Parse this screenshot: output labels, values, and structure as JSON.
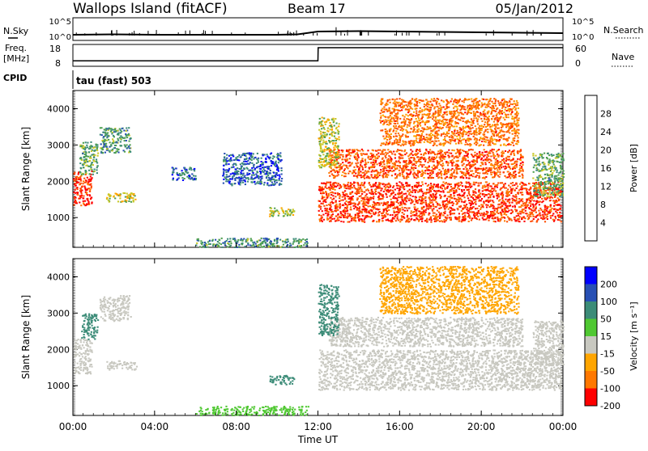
{
  "header": {
    "station": "Wallops Island (fitACF)",
    "beam": "Beam 17",
    "date": "05/Jan/2012"
  },
  "param_rows": {
    "nsky_label": "N.Sky",
    "nsky_tick_top": "10^5",
    "nsky_tick_bottom": "10^0",
    "nsearch_label": "N.Search",
    "nsearch_tick_top": "10^5",
    "nsearch_tick_bottom": "10^0",
    "freq_label_line1": "Freq.",
    "freq_label_line2": "[MHz]",
    "freq_tick_top": "18",
    "freq_tick_bottom": "8",
    "nave_label": "Nave",
    "nave_tick_top": "60",
    "nave_tick_bottom": "0",
    "cpid_label": "CPID",
    "cpid_value": "tau (fast) 503"
  },
  "colors": {
    "power_scale": [
      "#0000ff",
      "#2850b4",
      "#3c8c78",
      "#50a050",
      "#c8c828",
      "#ffa500",
      "#ff7800",
      "#ff4b00",
      "#ff0000"
    ],
    "velocity_scale": [
      "#0000ff",
      "#2850b4",
      "#3c8c78",
      "#50c832",
      "#c8c8c0",
      "#ffa500",
      "#ff7800",
      "#ff0000"
    ]
  },
  "chart_data": [
    {
      "type": "line",
      "name": "nsky-nsearch",
      "x": [
        0,
        2,
        4,
        6,
        8,
        10,
        11,
        12,
        14,
        16,
        18,
        20,
        22,
        24
      ],
      "series": [
        {
          "name": "N.Sky",
          "values": [
            1.2,
            1.3,
            1.2,
            1.2,
            1.2,
            1.2,
            1.3,
            2.0,
            2.1,
            2.0,
            1.9,
            1.8,
            1.7,
            1.6
          ]
        }
      ],
      "xlim": [
        0,
        24
      ]
    },
    {
      "type": "line",
      "name": "freq-nave",
      "x": [
        0,
        12,
        12.01,
        24
      ],
      "series": [
        {
          "name": "Freq.",
          "values": [
            10.5,
            10.5,
            16.5,
            16.5
          ]
        }
      ],
      "xlim": [
        0,
        24
      ],
      "ylim": [
        8,
        18
      ]
    },
    {
      "type": "heatmap",
      "name": "power",
      "ylabel": "Slant Range [km]",
      "colorbar_label": "Power [dB]",
      "colorbar_ticks": [
        "4",
        "8",
        "12",
        "16",
        "20",
        "24",
        "28"
      ],
      "xlim": [
        0,
        24
      ],
      "ylim": [
        180,
        4500
      ],
      "y_ticks": [
        "1000",
        "2000",
        "3000",
        "4000"
      ],
      "blobs": [
        {
          "t0": 0.0,
          "t1": 0.9,
          "r0": 1350,
          "r1": 2300,
          "level": 28
        },
        {
          "t0": 0.3,
          "t1": 1.2,
          "r0": 2200,
          "r1": 3100,
          "level": 12
        },
        {
          "t0": 1.3,
          "t1": 2.8,
          "r0": 2800,
          "r1": 3500,
          "level": 10
        },
        {
          "t0": 1.6,
          "t1": 3.1,
          "r0": 1450,
          "r1": 1700,
          "level": 16
        },
        {
          "t0": 4.8,
          "t1": 6.0,
          "r0": 2050,
          "r1": 2400,
          "level": 6
        },
        {
          "t0": 7.3,
          "t1": 10.2,
          "r0": 1900,
          "r1": 2800,
          "level": 6
        },
        {
          "t0": 9.6,
          "t1": 10.8,
          "r0": 1050,
          "r1": 1300,
          "level": 16
        },
        {
          "t0": 6.0,
          "t1": 11.5,
          "r0": 200,
          "r1": 450,
          "level": 10
        },
        {
          "t0": 12.0,
          "t1": 23.9,
          "r0": 900,
          "r1": 2000,
          "level": 28
        },
        {
          "t0": 12.5,
          "t1": 22.0,
          "r0": 2100,
          "r1": 2900,
          "level": 26
        },
        {
          "t0": 15.0,
          "t1": 21.8,
          "r0": 3000,
          "r1": 4300,
          "level": 24
        },
        {
          "t0": 12.0,
          "t1": 13.0,
          "r0": 2400,
          "r1": 3800,
          "level": 16
        },
        {
          "t0": 22.5,
          "t1": 24.0,
          "r0": 1600,
          "r1": 2800,
          "level": 12
        }
      ]
    },
    {
      "type": "heatmap",
      "name": "velocity",
      "ylabel": "Slant Range [km]",
      "colorbar_label": "Velocity [m s⁻¹]",
      "colorbar_ticks": [
        "200",
        "100",
        "50",
        "15",
        "-15",
        "-50",
        "-100",
        "-200"
      ],
      "xlim": [
        0,
        24
      ],
      "ylim": [
        180,
        4500
      ],
      "y_ticks": [
        "1000",
        "2000",
        "3000",
        "4000"
      ],
      "x_ticks": [
        "00:00",
        "04:00",
        "08:00",
        "12:00",
        "16:00",
        "20:00",
        "00:00"
      ],
      "xlabel": "Time UT",
      "blobs": [
        {
          "t0": 0.0,
          "t1": 0.9,
          "r0": 1350,
          "r1": 2300,
          "level": 0
        },
        {
          "t0": 0.4,
          "t1": 1.2,
          "r0": 2300,
          "r1": 3000,
          "level": 60
        },
        {
          "t0": 1.3,
          "t1": 2.8,
          "r0": 2800,
          "r1": 3500,
          "level": 0
        },
        {
          "t0": 1.6,
          "t1": 3.1,
          "r0": 1450,
          "r1": 1700,
          "level": 0
        },
        {
          "t0": 9.6,
          "t1": 10.8,
          "r0": 1050,
          "r1": 1300,
          "level": 70
        },
        {
          "t0": 6.0,
          "t1": 11.5,
          "r0": 200,
          "r1": 450,
          "level": 40
        },
        {
          "t0": 12.0,
          "t1": 23.9,
          "r0": 900,
          "r1": 2000,
          "level": 0
        },
        {
          "t0": 12.5,
          "t1": 22.0,
          "r0": 2100,
          "r1": 2900,
          "level": 0
        },
        {
          "t0": 15.0,
          "t1": 21.8,
          "r0": 3000,
          "r1": 4300,
          "level": -20
        },
        {
          "t0": 12.0,
          "t1": 13.0,
          "r0": 2400,
          "r1": 3800,
          "level": 60
        },
        {
          "t0": 22.5,
          "t1": 24.0,
          "r0": 1600,
          "r1": 2800,
          "level": 0
        }
      ]
    }
  ]
}
